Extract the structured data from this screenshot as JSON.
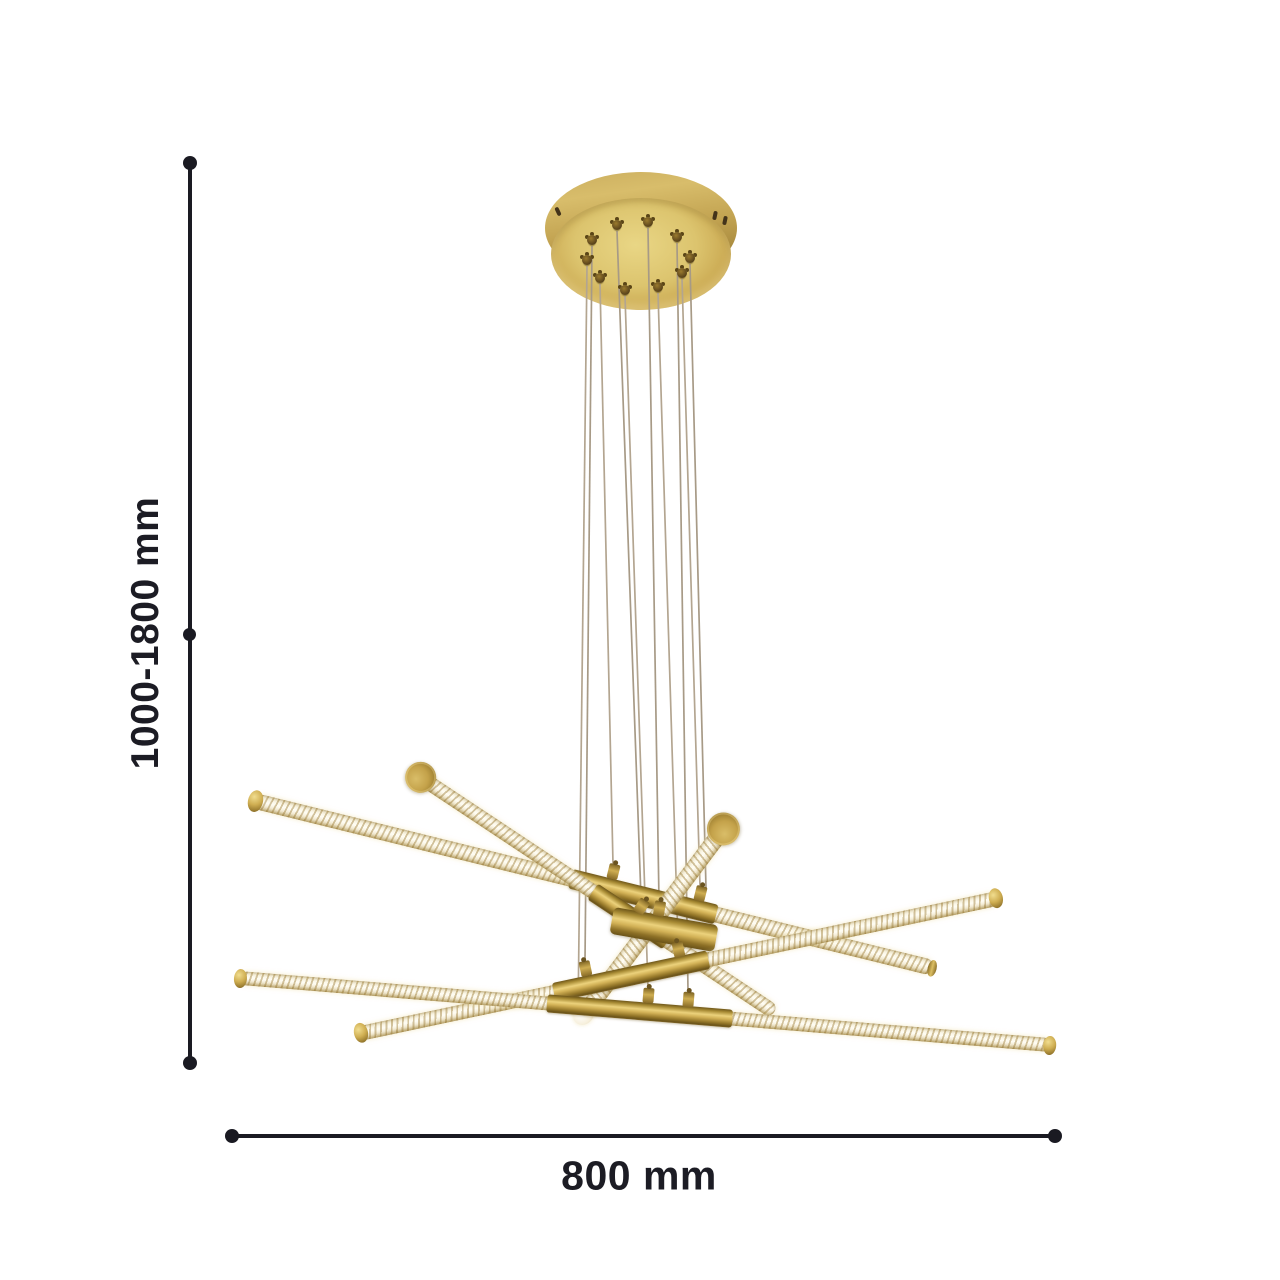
{
  "figure": {
    "subject": "crossed-tube pendant chandelier dimension diagram",
    "height_dimension": {
      "label": "1000-1800 mm",
      "orientation": "vertical"
    },
    "width_dimension": {
      "label": "800 mm",
      "orientation": "horizontal"
    }
  },
  "colors": {
    "background": "#ffffff",
    "dimension_line": "#1a1a22",
    "dimension_text": "#1c1c24",
    "brass_highlight": "#ecd27c",
    "brass_mid": "#d2b156",
    "brass_shadow": "#6e5619",
    "glass_tint": "#d9c996",
    "glass_spiral": "#96742a",
    "wire": "#b3a590",
    "canopy_face": "#dcc46e",
    "canopy_rim": "#a8893c"
  }
}
